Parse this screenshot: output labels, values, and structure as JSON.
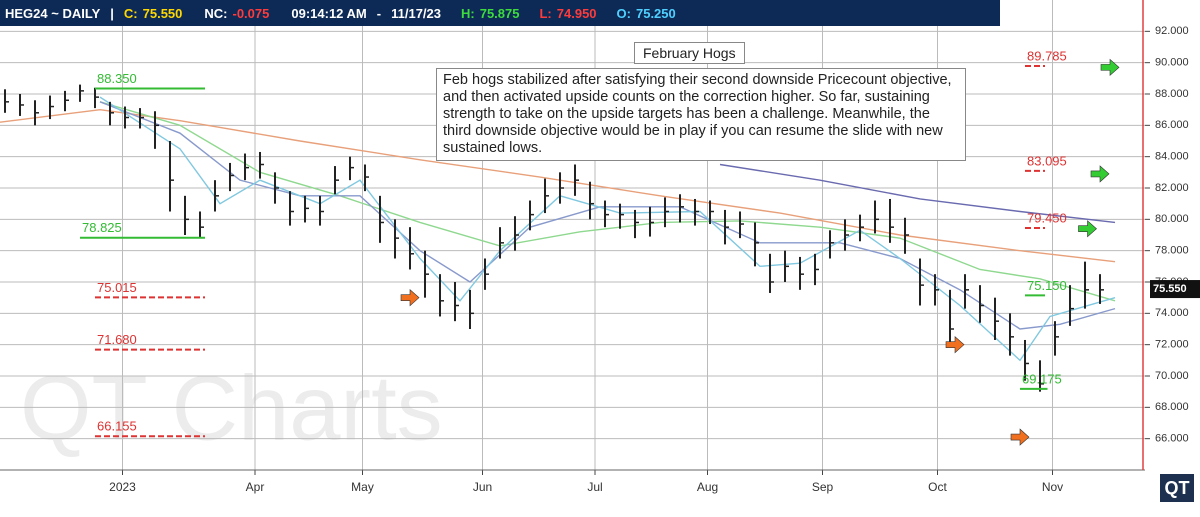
{
  "header": {
    "symbol": "HEG24 ~ DAILY",
    "sep": "|",
    "close_label": "C:",
    "close": "75.550",
    "change_label": "NC:",
    "change": "-0.075",
    "time": "09:14:12 AM",
    "dash": "-",
    "date": "11/17/23",
    "high_label": "H:",
    "high": "75.875",
    "low_label": "L:",
    "low": "74.950",
    "open_label": "O:",
    "open": "75.250"
  },
  "chart_data": {
    "type": "ohlc",
    "title": "February Hogs",
    "commentary": "Feb hogs stabilized after satisfying their second downside Pricecount objective, and then activated upside counts on the correction higher. So far, sustaining strength to take on the upside targets has been a challenge.  Meanwhile, the third downside objective would be in play if you can resume the slide with new sustained lows.",
    "watermark": "QT Charts",
    "logo": "QT",
    "xlim": [
      0,
      229
    ],
    "ylim": [
      64,
      94
    ],
    "xticks": [
      {
        "value": 24.5,
        "label": "2023"
      },
      {
        "value": 51,
        "label": "Apr"
      },
      {
        "value": 72.5,
        "label": "May"
      },
      {
        "value": 96.5,
        "label": "Jun"
      },
      {
        "value": 119,
        "label": "Jul"
      },
      {
        "value": 141.5,
        "label": "Aug"
      },
      {
        "value": 164.5,
        "label": "Sep"
      },
      {
        "value": 187.5,
        "label": "Oct"
      },
      {
        "value": 210.5,
        "label": "Nov"
      }
    ],
    "yticks": [
      {
        "value": 66,
        "label": "66.000"
      },
      {
        "value": 68,
        "label": "68.000"
      },
      {
        "value": 70,
        "label": "70.000"
      },
      {
        "value": 72,
        "label": "72.000"
      },
      {
        "value": 74,
        "label": "74.000"
      },
      {
        "value": 76,
        "label": "76.000"
      },
      {
        "value": 78,
        "label": "78.000"
      },
      {
        "value": 80,
        "label": "80.000"
      },
      {
        "value": 82,
        "label": "82.000"
      },
      {
        "value": 84,
        "label": "84.000"
      },
      {
        "value": 86,
        "label": "86.000"
      },
      {
        "value": 88,
        "label": "88.000"
      },
      {
        "value": 90,
        "label": "90.000"
      },
      {
        "value": 92,
        "label": "92.000"
      }
    ],
    "grid": true,
    "bar_color": "#222222",
    "bars": {
      "x": [
        1,
        4,
        7,
        10,
        13,
        16,
        19,
        22,
        25,
        28,
        31,
        34,
        37,
        40,
        43,
        46,
        49,
        52,
        55,
        58,
        61,
        64,
        67,
        70,
        73,
        76,
        79,
        82,
        85,
        88,
        91,
        94,
        97,
        100,
        103,
        106,
        109,
        112,
        115,
        118,
        121,
        124,
        127,
        130,
        133,
        136,
        139,
        142,
        145,
        148,
        151,
        154,
        157,
        160,
        163,
        166,
        169,
        172,
        175,
        178,
        181,
        184,
        187,
        190,
        193,
        196,
        199,
        202,
        205,
        208,
        211,
        214,
        217,
        220
      ],
      "high": [
        88.3,
        88,
        87.6,
        87.9,
        88.2,
        88.6,
        88.4,
        87.5,
        87.2,
        87.1,
        86.9,
        85,
        81.5,
        80.5,
        82.5,
        83.6,
        84.2,
        84.3,
        83,
        81.8,
        81.5,
        81.5,
        83.4,
        84,
        83.5,
        81.5,
        80,
        79.5,
        78,
        76.5,
        76,
        75.5,
        77.5,
        79.5,
        80.2,
        81.2,
        82.6,
        83,
        83.5,
        82.4,
        81.2,
        81,
        80.6,
        80.8,
        81.4,
        81.6,
        81.3,
        81.2,
        80.6,
        80.5,
        79.8,
        77.8,
        78,
        77.6,
        77.8,
        79.3,
        80,
        80.3,
        81.2,
        81.3,
        80.1,
        77.5,
        76.5,
        75.5,
        76.5,
        75.8,
        75,
        74,
        72.3,
        71,
        73.5,
        75.8,
        77.3,
        76.5
      ],
      "low": [
        86.8,
        86.6,
        86,
        86.4,
        86.9,
        87.5,
        87.1,
        86,
        85.8,
        85.8,
        84.5,
        80.5,
        79,
        78.8,
        80.5,
        81.8,
        82.5,
        82.6,
        81,
        79.6,
        79.8,
        79.6,
        81.6,
        82.5,
        81.8,
        78.5,
        77.5,
        76.8,
        75,
        73.8,
        73.5,
        73,
        75.5,
        77.5,
        78,
        79.3,
        80.4,
        81,
        81.5,
        80,
        79.5,
        79.4,
        78.8,
        78.9,
        79.5,
        79.8,
        79.6,
        79.7,
        78.4,
        78.8,
        77,
        75.3,
        76,
        75.5,
        75.8,
        77.5,
        78,
        78.6,
        79.1,
        78.5,
        77.8,
        74.5,
        74.5,
        72,
        74.3,
        73.4,
        72.3,
        71.3,
        69.7,
        69,
        71.3,
        73.2,
        74.3,
        74.6
      ],
      "close": [
        87.5,
        87.3,
        86.8,
        87.2,
        87.6,
        88.2,
        87.8,
        86.8,
        86.5,
        86.5,
        86,
        82.5,
        80,
        79.5,
        81.5,
        82.8,
        83.3,
        83.5,
        82,
        80.5,
        80.7,
        80.5,
        82.5,
        83.3,
        82.7,
        79.8,
        78.8,
        77.8,
        76.5,
        74.8,
        74.5,
        74,
        76.5,
        78.5,
        79,
        80.3,
        81.5,
        82,
        82.5,
        81,
        80.3,
        80.3,
        79.8,
        79.8,
        80.5,
        80.8,
        80.5,
        80.5,
        79.5,
        79.7,
        78.5,
        76,
        77,
        76.5,
        76.8,
        78.5,
        79,
        79.5,
        80,
        79.5,
        79,
        75.8,
        75.5,
        73,
        75.5,
        74.5,
        73.5,
        72.5,
        70.8,
        69.5,
        72.5,
        74.3,
        75.5,
        75.5
      ]
    },
    "series": [
      {
        "color": "#e8a07a",
        "x": [
          0,
          20,
          36,
          60,
          84,
          108,
          132,
          156,
          180,
          204,
          223
        ],
        "values": [
          86.2,
          87,
          86.3,
          85,
          83.8,
          82.7,
          81.5,
          80.4,
          79,
          78,
          77.3
        ]
      },
      {
        "color": "#8fd88f",
        "x": [
          20,
          36,
          52,
          68,
          84,
          100,
          116,
          132,
          148,
          164,
          180,
          196,
          208,
          223
        ],
        "values": [
          87.5,
          86,
          83,
          81.5,
          79.8,
          78.3,
          79.2,
          79.8,
          79.9,
          79.5,
          78.8,
          76.8,
          76.2,
          74.8
        ]
      },
      {
        "color": "#8899cc",
        "x": [
          20,
          36,
          48,
          60,
          72,
          84,
          94,
          106,
          120,
          136,
          152,
          168,
          180,
          192,
          204,
          212,
          223
        ],
        "values": [
          87.5,
          85.5,
          82.5,
          81.5,
          81.5,
          78,
          76,
          79.5,
          80.8,
          80.8,
          78.5,
          78.5,
          77.5,
          75.5,
          73,
          73.3,
          74.3
        ]
      },
      {
        "color": "#80c8e0",
        "x": [
          20,
          36,
          44,
          52,
          64,
          72,
          84,
          92,
          100,
          112,
          124,
          140,
          152,
          160,
          172,
          180,
          192,
          204,
          210,
          223
        ],
        "values": [
          87.8,
          84.5,
          81,
          82.5,
          81,
          82.5,
          77.5,
          74.8,
          78,
          81.5,
          80.4,
          80.5,
          77,
          77.2,
          79.3,
          77.5,
          74.5,
          71,
          73.8,
          75
        ]
      },
      {
        "color": "#6a6ab0",
        "x": [
          144,
          164,
          184,
          204,
          223
        ],
        "values": [
          83.5,
          82.5,
          81.3,
          80.5,
          79.8
        ]
      }
    ],
    "levels": [
      {
        "value": 88.35,
        "label": "88.350",
        "color": "#33bb33",
        "x0": 19,
        "x1": 41,
        "dashed": false
      },
      {
        "value": 78.825,
        "label": "78.825",
        "color": "#33bb33",
        "x0": 16,
        "x1": 41,
        "dashed": false
      },
      {
        "value": 75.015,
        "label": "75.015",
        "color": "#dd3333",
        "x0": 19,
        "x1": 41,
        "dashed": true
      },
      {
        "value": 71.68,
        "label": "71.680",
        "color": "#dd3333",
        "x0": 19,
        "x1": 41,
        "dashed": true
      },
      {
        "value": 66.155,
        "label": "66.155",
        "color": "#dd3333",
        "x0": 19,
        "x1": 41,
        "dashed": true
      },
      {
        "value": 89.785,
        "label": "89.785",
        "color": "#dd3333",
        "x0": 205,
        "x1": 209,
        "dashed": true
      },
      {
        "value": 83.095,
        "label": "83.095",
        "color": "#dd3333",
        "x0": 205,
        "x1": 209,
        "dashed": true
      },
      {
        "value": 79.45,
        "label": "79.450",
        "color": "#dd3333",
        "x0": 205,
        "x1": 209,
        "dashed": true
      },
      {
        "value": 75.15,
        "label": "75.150",
        "color": "#33bb33",
        "x0": 205,
        "x1": 209,
        "dashed": false
      },
      {
        "value": 69.175,
        "label": "69.175",
        "color": "#33bb33",
        "x0": 204,
        "x1": 209.5,
        "dashed": false
      }
    ],
    "arrows": [
      {
        "x": 82,
        "y": 75,
        "color": "#f07020"
      },
      {
        "x": 191,
        "y": 72,
        "color": "#f07020"
      },
      {
        "x": 204,
        "y": 66.1,
        "color": "#f07020"
      },
      {
        "x": 222,
        "y": 89.7,
        "color": "#33cc33"
      },
      {
        "x": 220,
        "y": 82.9,
        "color": "#33cc33"
      },
      {
        "x": 217.5,
        "y": 79.4,
        "color": "#33cc33"
      }
    ],
    "last": {
      "value": 75.55,
      "label": "75.550"
    }
  }
}
